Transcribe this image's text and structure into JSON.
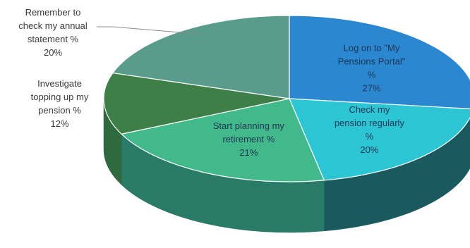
{
  "chart_data": {
    "type": "pie",
    "title": "",
    "style": "3d-exploded-none",
    "start_angle_deg": -90,
    "slices": [
      {
        "name": "Log on to \"My Pensions Portal\" %",
        "value": 27,
        "value_label": "27%",
        "label_lines": [
          "Log on to \"My",
          "Pensions Portal\"",
          "%",
          "27%"
        ],
        "color": "#2a87d0",
        "side_color": "#1f5f8d",
        "label_color": "#1f3555",
        "label_position": "inside"
      },
      {
        "name": "Check my pension regularly %",
        "value": 20,
        "value_label": "20%",
        "label_lines": [
          "Check my",
          "pension regularly",
          "%",
          "20%"
        ],
        "color": "#2cc5d4",
        "side_color": "#1a5a5f",
        "label_color": "#1f3555",
        "label_position": "inside"
      },
      {
        "name": "Start planning my retirement %",
        "value": 21,
        "value_label": "21%",
        "label_lines": [
          "Start planning my",
          "retirement %",
          "21%"
        ],
        "color": "#42b98b",
        "side_color": "#2a7a68",
        "label_color": "#1f3555",
        "label_position": "inside"
      },
      {
        "name": "Investigate topping up my pension %",
        "value": 12,
        "value_label": "12%",
        "label_lines": [
          "Investigate",
          "topping up my",
          "pension %",
          "12%"
        ],
        "color": "#3d7f47",
        "side_color": "#2e6940",
        "label_color": "#3a3a3a",
        "label_position": "outside-left"
      },
      {
        "name": "Remember to check my annual statement %",
        "value": 20,
        "value_label": "20%",
        "label_lines": [
          "Remember to",
          "check my annual",
          "statement %",
          "20%"
        ],
        "color": "#5a9c8c",
        "side_color": "#3f7a6e",
        "label_color": "#3a3a3a",
        "label_position": "outside-left-leader"
      }
    ]
  }
}
